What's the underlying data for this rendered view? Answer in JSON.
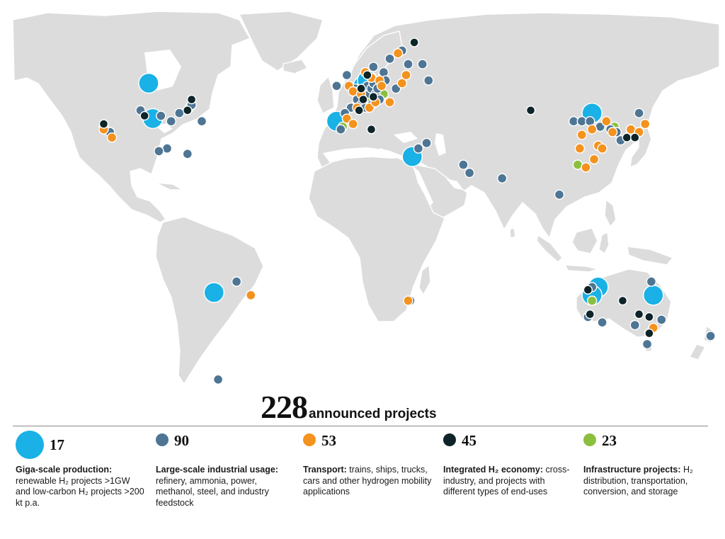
{
  "headline": {
    "total": "228",
    "label": "announced projects"
  },
  "colors": {
    "giga": "#19b1e6",
    "industrial": "#4e7594",
    "transport": "#f4921e",
    "integrated": "#0d2428",
    "infrastructure": "#8cbf3f",
    "land": "#dcdcdc"
  },
  "legend": [
    {
      "key": "giga",
      "count": "17",
      "title": "Giga-scale production:",
      "text": "renewable H₂ projects >1GW and low-carbon H₂ projects >200 kt p.a."
    },
    {
      "key": "industrial",
      "count": "90",
      "title": "Large-scale industrial usage:",
      "text": "refinery, ammonia, power, methanol, steel, and industry feedstock"
    },
    {
      "key": "transport",
      "count": "53",
      "title": "Transport:",
      "text": "trains, ships, trucks, cars and other hydrogen mobility applications"
    },
    {
      "key": "integrated",
      "count": "45",
      "title": "Integrated H₂ economy:",
      "text": "cross-industry, and projects with different types of end-uses"
    },
    {
      "key": "infrastructure",
      "count": "23",
      "title": "Infrastructure projects:",
      "text": "H₂ distribution, transportation, conversion, and storage"
    }
  ],
  "projects": [
    {
      "type": "giga",
      "lon": -100,
      "lat": 54
    },
    {
      "type": "giga",
      "lon": -98,
      "lat": 41
    },
    {
      "type": "giga",
      "lon": -8,
      "lat": 40
    },
    {
      "type": "giga",
      "lon": 29,
      "lat": 27
    },
    {
      "type": "giga",
      "lon": -68,
      "lat": -23
    },
    {
      "type": "giga",
      "lon": 117,
      "lat": 43
    },
    {
      "type": "giga",
      "lon": 120,
      "lat": -21
    },
    {
      "type": "giga",
      "lon": 117,
      "lat": -24
    },
    {
      "type": "giga",
      "lon": 147,
      "lat": -24
    },
    {
      "type": "giga",
      "lon": 5,
      "lat": 53
    },
    {
      "type": "giga",
      "lon": 7,
      "lat": 55
    },
    {
      "type": "industrial",
      "lon": -104,
      "lat": 44
    },
    {
      "type": "industrial",
      "lon": -94,
      "lat": 42
    },
    {
      "type": "industrial",
      "lon": -85,
      "lat": 43
    },
    {
      "type": "industrial",
      "lon": -79,
      "lat": 46
    },
    {
      "type": "industrial",
      "lon": -74,
      "lat": 40
    },
    {
      "type": "industrial",
      "lon": -89,
      "lat": 40
    },
    {
      "type": "industrial",
      "lon": -119,
      "lat": 36
    },
    {
      "type": "industrial",
      "lon": -91,
      "lat": 30
    },
    {
      "type": "industrial",
      "lon": -95,
      "lat": 29
    },
    {
      "type": "industrial",
      "lon": -81,
      "lat": 28
    },
    {
      "type": "industrial",
      "lon": -66,
      "lat": -55
    },
    {
      "type": "industrial",
      "lon": -57,
      "lat": -19
    },
    {
      "type": "industrial",
      "lon": -3,
      "lat": 57
    },
    {
      "type": "industrial",
      "lon": 1,
      "lat": 52
    },
    {
      "type": "industrial",
      "lon": 3,
      "lat": 51
    },
    {
      "type": "industrial",
      "lon": 5,
      "lat": 52
    },
    {
      "type": "industrial",
      "lon": 6,
      "lat": 51
    },
    {
      "type": "industrial",
      "lon": 7,
      "lat": 53
    },
    {
      "type": "industrial",
      "lon": 8,
      "lat": 50
    },
    {
      "type": "industrial",
      "lon": 9,
      "lat": 52
    },
    {
      "type": "industrial",
      "lon": 10,
      "lat": 54
    },
    {
      "type": "industrial",
      "lon": 11,
      "lat": 50
    },
    {
      "type": "industrial",
      "lon": 12,
      "lat": 52
    },
    {
      "type": "industrial",
      "lon": 13,
      "lat": 48
    },
    {
      "type": "industrial",
      "lon": 2,
      "lat": 48
    },
    {
      "type": "industrial",
      "lon": 4,
      "lat": 46
    },
    {
      "type": "industrial",
      "lon": 6,
      "lat": 45
    },
    {
      "type": "industrial",
      "lon": 9,
      "lat": 46
    },
    {
      "type": "industrial",
      "lon": -1,
      "lat": 45
    },
    {
      "type": "industrial",
      "lon": -4,
      "lat": 43
    },
    {
      "type": "industrial",
      "lon": -6,
      "lat": 37
    },
    {
      "type": "industrial",
      "lon": 10,
      "lat": 60
    },
    {
      "type": "industrial",
      "lon": 15,
      "lat": 58
    },
    {
      "type": "industrial",
      "lon": 18,
      "lat": 63
    },
    {
      "type": "industrial",
      "lon": 24,
      "lat": 66
    },
    {
      "type": "industrial",
      "lon": 27,
      "lat": 61
    },
    {
      "type": "industrial",
      "lon": 21,
      "lat": 52
    },
    {
      "type": "industrial",
      "lon": 16,
      "lat": 55
    },
    {
      "type": "industrial",
      "lon": -8,
      "lat": 53
    },
    {
      "type": "industrial",
      "lon": 32,
      "lat": 30
    },
    {
      "type": "industrial",
      "lon": 36,
      "lat": 32
    },
    {
      "type": "industrial",
      "lon": 54,
      "lat": 24
    },
    {
      "type": "industrial",
      "lon": 57,
      "lat": 21
    },
    {
      "type": "industrial",
      "lon": 73,
      "lat": 19
    },
    {
      "type": "industrial",
      "lon": 101,
      "lat": 13
    },
    {
      "type": "industrial",
      "lon": 28,
      "lat": -26
    },
    {
      "type": "industrial",
      "lon": 108,
      "lat": 40
    },
    {
      "type": "industrial",
      "lon": 112,
      "lat": 40
    },
    {
      "type": "industrial",
      "lon": 116,
      "lat": 40
    },
    {
      "type": "industrial",
      "lon": 121,
      "lat": 38
    },
    {
      "type": "industrial",
      "lon": 126,
      "lat": 37
    },
    {
      "type": "industrial",
      "lon": 129,
      "lat": 36
    },
    {
      "type": "industrial",
      "lon": 131,
      "lat": 33
    },
    {
      "type": "industrial",
      "lon": 136,
      "lat": 35
    },
    {
      "type": "industrial",
      "lon": 140,
      "lat": 43
    },
    {
      "type": "industrial",
      "lon": 117,
      "lat": -21
    },
    {
      "type": "industrial",
      "lon": 122,
      "lat": -34
    },
    {
      "type": "industrial",
      "lon": 115,
      "lat": -32
    },
    {
      "type": "industrial",
      "lon": 138,
      "lat": -35
    },
    {
      "type": "industrial",
      "lon": 145,
      "lat": -38
    },
    {
      "type": "industrial",
      "lon": 151,
      "lat": -33
    },
    {
      "type": "industrial",
      "lon": 146,
      "lat": -19
    },
    {
      "type": "industrial",
      "lon": 144,
      "lat": -42
    },
    {
      "type": "industrial",
      "lon": 175,
      "lat": -39
    },
    {
      "type": "industrial",
      "lon": 34,
      "lat": 61
    },
    {
      "type": "industrial",
      "lon": 37,
      "lat": 55
    },
    {
      "type": "transport",
      "lon": -118,
      "lat": 34
    },
    {
      "type": "transport",
      "lon": -122,
      "lat": 37
    },
    {
      "type": "transport",
      "lon": -50,
      "lat": -24
    },
    {
      "type": "transport",
      "lon": -2,
      "lat": 53
    },
    {
      "type": "transport",
      "lon": 0,
      "lat": 51
    },
    {
      "type": "transport",
      "lon": 4,
      "lat": 50
    },
    {
      "type": "transport",
      "lon": 6,
      "lat": 58
    },
    {
      "type": "transport",
      "lon": 9,
      "lat": 56
    },
    {
      "type": "transport",
      "lon": 13,
      "lat": 55
    },
    {
      "type": "transport",
      "lon": 14,
      "lat": 53
    },
    {
      "type": "transport",
      "lon": 2,
      "lat": 45
    },
    {
      "type": "transport",
      "lon": -3,
      "lat": 41
    },
    {
      "type": "transport",
      "lon": 0,
      "lat": 39
    },
    {
      "type": "transport",
      "lon": 8,
      "lat": 45
    },
    {
      "type": "transport",
      "lon": 11,
      "lat": 47
    },
    {
      "type": "transport",
      "lon": 18,
      "lat": 47
    },
    {
      "type": "transport",
      "lon": 24,
      "lat": 54
    },
    {
      "type": "transport",
      "lon": 26,
      "lat": 57
    },
    {
      "type": "transport",
      "lon": 22,
      "lat": 65
    },
    {
      "type": "transport",
      "lon": 27,
      "lat": -26
    },
    {
      "type": "transport",
      "lon": 111,
      "lat": 30
    },
    {
      "type": "transport",
      "lon": 114,
      "lat": 23
    },
    {
      "type": "transport",
      "lon": 118,
      "lat": 26
    },
    {
      "type": "transport",
      "lon": 120,
      "lat": 31
    },
    {
      "type": "transport",
      "lon": 112,
      "lat": 35
    },
    {
      "type": "transport",
      "lon": 117,
      "lat": 37
    },
    {
      "type": "transport",
      "lon": 122,
      "lat": 30
    },
    {
      "type": "transport",
      "lon": 124,
      "lat": 40
    },
    {
      "type": "transport",
      "lon": 127,
      "lat": 36
    },
    {
      "type": "transport",
      "lon": 136,
      "lat": 37
    },
    {
      "type": "transport",
      "lon": 140,
      "lat": 36
    },
    {
      "type": "transport",
      "lon": 143,
      "lat": 39
    },
    {
      "type": "transport",
      "lon": 147,
      "lat": -36
    },
    {
      "type": "integrated",
      "lon": -79,
      "lat": 48
    },
    {
      "type": "integrated",
      "lon": -102,
      "lat": 42
    },
    {
      "type": "integrated",
      "lon": -122,
      "lat": 39
    },
    {
      "type": "integrated",
      "lon": -81,
      "lat": 44
    },
    {
      "type": "integrated",
      "lon": 30,
      "lat": 69
    },
    {
      "type": "integrated",
      "lon": 9,
      "lat": 37
    },
    {
      "type": "integrated",
      "lon": 3,
      "lat": 44
    },
    {
      "type": "integrated",
      "lon": 5,
      "lat": 48
    },
    {
      "type": "integrated",
      "lon": 7,
      "lat": 57
    },
    {
      "type": "integrated",
      "lon": 87,
      "lat": 44
    },
    {
      "type": "integrated",
      "lon": 134,
      "lat": 34
    },
    {
      "type": "integrated",
      "lon": 138,
      "lat": 34
    },
    {
      "type": "integrated",
      "lon": 115,
      "lat": -22
    },
    {
      "type": "integrated",
      "lon": 132,
      "lat": -26
    },
    {
      "type": "integrated",
      "lon": 140,
      "lat": -31
    },
    {
      "type": "integrated",
      "lon": 145,
      "lat": -32
    },
    {
      "type": "integrated",
      "lon": 145,
      "lat": -38
    },
    {
      "type": "integrated",
      "lon": 116,
      "lat": -31
    },
    {
      "type": "integrated",
      "lon": 4,
      "lat": 52
    },
    {
      "type": "integrated",
      "lon": 10,
      "lat": 49
    },
    {
      "type": "infrastructure",
      "lon": -122,
      "lat": 38
    },
    {
      "type": "infrastructure",
      "lon": -91,
      "lat": 30
    },
    {
      "type": "infrastructure",
      "lon": -80,
      "lat": 45
    },
    {
      "type": "infrastructure",
      "lon": -5,
      "lat": 38
    },
    {
      "type": "infrastructure",
      "lon": 15,
      "lat": 50
    },
    {
      "type": "infrastructure",
      "lon": 8,
      "lat": 48
    },
    {
      "type": "infrastructure",
      "lon": 110,
      "lat": 24
    },
    {
      "type": "infrastructure",
      "lon": 128,
      "lat": 38
    },
    {
      "type": "infrastructure",
      "lon": 117,
      "lat": -26
    }
  ]
}
